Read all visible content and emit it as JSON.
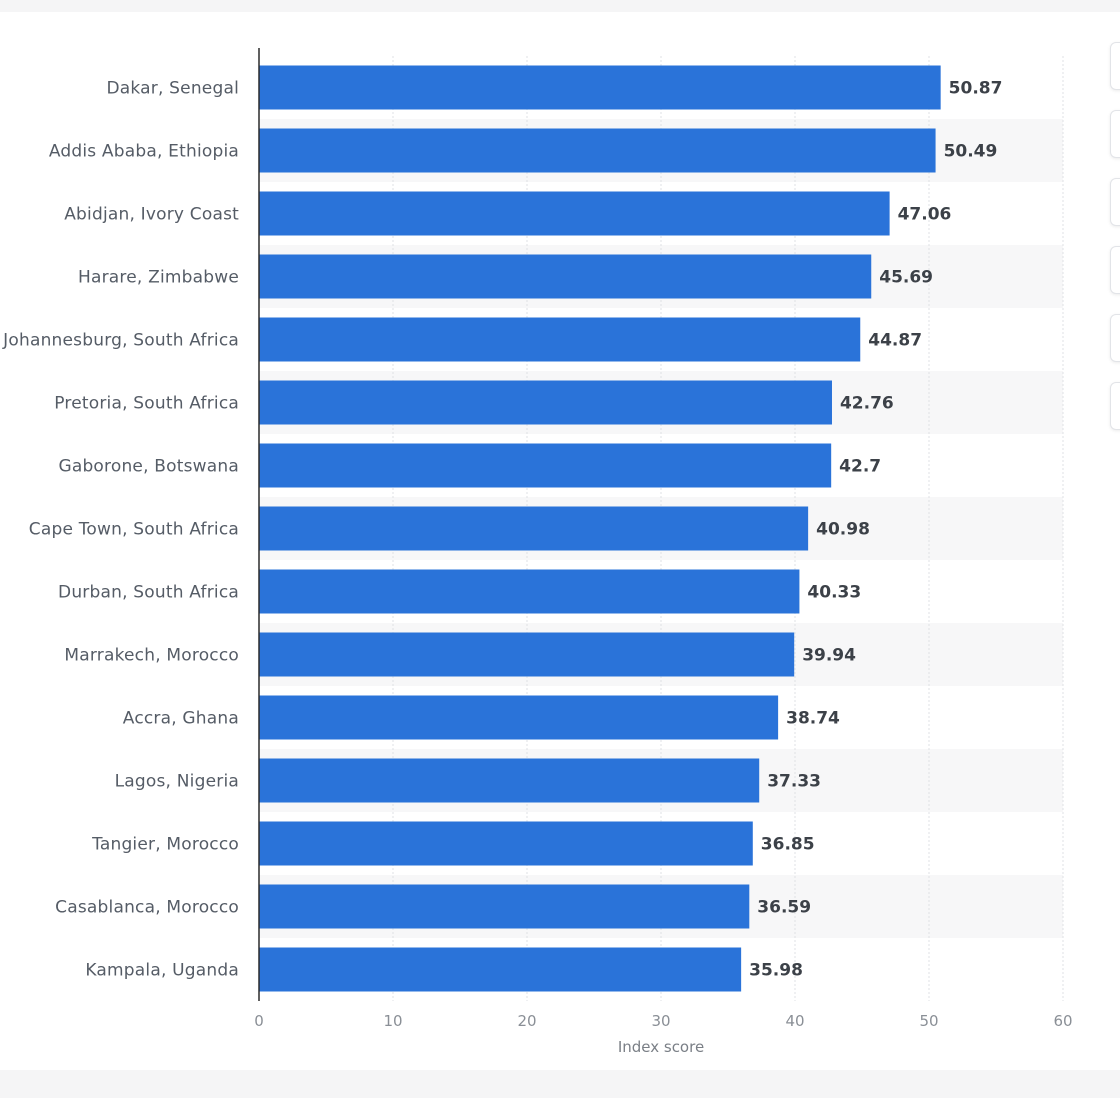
{
  "chart_data": {
    "type": "bar",
    "orientation": "horizontal",
    "title": "",
    "xlabel": "Index score",
    "ylabel": "",
    "xlim": [
      0,
      60
    ],
    "xticks": [
      0,
      10,
      20,
      30,
      40,
      50,
      60
    ],
    "grid": true,
    "bar_color": "#2a73d9",
    "categories": [
      "Dakar, Senegal",
      "Addis Ababa, Ethiopia",
      "Abidjan, Ivory Coast",
      "Harare, Zimbabwe",
      "Johannesburg, South Africa",
      "Pretoria, South Africa",
      "Gaborone, Botswana",
      "Cape Town, South Africa",
      "Durban, South Africa",
      "Marrakech, Morocco",
      "Accra, Ghana",
      "Lagos, Nigeria",
      "Tangier, Morocco",
      "Casablanca, Morocco",
      "Kampala, Uganda"
    ],
    "values": [
      50.87,
      50.49,
      47.06,
      45.69,
      44.87,
      42.76,
      42.7,
      40.98,
      40.33,
      39.94,
      38.74,
      37.33,
      36.85,
      36.59,
      35.98
    ],
    "value_labels": [
      "50.87",
      "50.49",
      "47.06",
      "45.69",
      "44.87",
      "42.76",
      "42.7",
      "40.98",
      "40.33",
      "39.94",
      "38.74",
      "37.33",
      "36.85",
      "36.59",
      "35.98"
    ]
  },
  "toolbar": {
    "buttons": [
      "chart-action-1",
      "chart-action-2",
      "chart-action-3",
      "chart-action-4",
      "chart-action-5",
      "chart-action-6"
    ]
  }
}
